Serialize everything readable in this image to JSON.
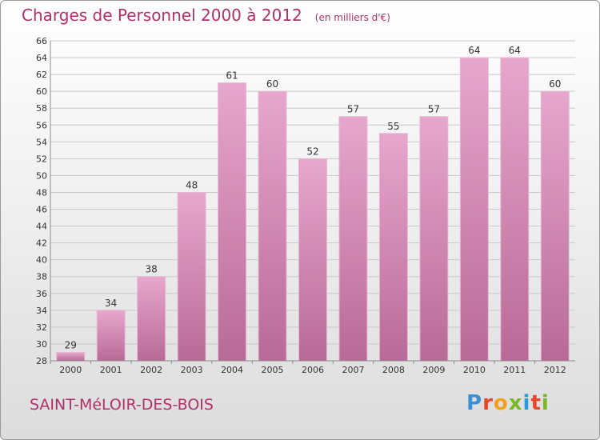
{
  "header": {
    "title": "Charges de Personnel 2000 à 2012",
    "subtitle": "(en milliers d'€)"
  },
  "footer": {
    "place": "SAINT-MéLOIR-DES-BOIS",
    "logo": [
      "P",
      "r",
      "o",
      "x",
      "i",
      "t",
      "i"
    ],
    "logo_colors": [
      "#3b8fd4",
      "#e8462a",
      "#f2a016",
      "#7ab828",
      "#2b9bd8",
      "#e8462a",
      "#7ab828"
    ]
  },
  "colors": {
    "bar": "#d98ab7",
    "bar_dark": "#c56a9c",
    "bar_edge": "#ffffff",
    "grid": "#c8c8c8",
    "axis": "#8c8c8c",
    "text": "#333333"
  },
  "chart_data": {
    "type": "bar",
    "categories": [
      "2000",
      "2001",
      "2002",
      "2003",
      "2004",
      "2005",
      "2006",
      "2007",
      "2008",
      "2009",
      "2010",
      "2011",
      "2012"
    ],
    "values": [
      29,
      34,
      38,
      48,
      61,
      60,
      52,
      57,
      55,
      57,
      64,
      64,
      60
    ],
    "ylim": [
      28,
      66
    ],
    "yticks": [
      28,
      30,
      32,
      34,
      36,
      38,
      40,
      42,
      44,
      46,
      48,
      50,
      52,
      54,
      56,
      58,
      60,
      62,
      64,
      66
    ],
    "grid": true
  }
}
